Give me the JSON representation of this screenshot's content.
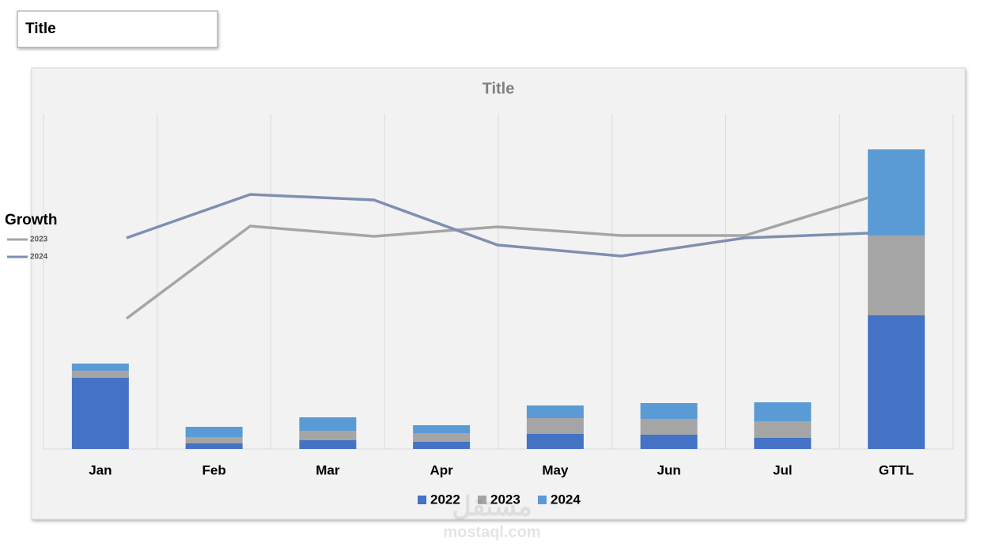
{
  "title_box": "Title",
  "watermark": [
    "مستقل",
    "mostaql.com"
  ],
  "chart_data": [
    {
      "type": "bar",
      "stacked": true,
      "title": "Title",
      "categories": [
        "Jan",
        "Feb",
        "Mar",
        "Apr",
        "May",
        "Jun",
        "Jul",
        "GTTL"
      ],
      "series": [
        {
          "name": "2022",
          "color": "#4472c4",
          "values": [
            90,
            7,
            11,
            9,
            19,
            18,
            14,
            169
          ]
        },
        {
          "name": "2023",
          "color": "#a5a5a5",
          "values": [
            9,
            8,
            12,
            11,
            20,
            20,
            21,
            101
          ]
        },
        {
          "name": "2024",
          "color": "#5b9bd5",
          "values": [
            9,
            13,
            17,
            10,
            16,
            20,
            24,
            109
          ]
        }
      ],
      "ylim": [
        0,
        424
      ],
      "grid": true,
      "legend": "bottom"
    },
    {
      "type": "line",
      "legend_title": "Growth",
      "series": [
        {
          "name": "2023",
          "color": "#a5a5a5",
          "values": [
            165,
            282,
            269,
            281,
            270,
            270,
            318
          ]
        },
        {
          "name": "2024",
          "color": "#7f8fb0",
          "values": [
            267,
            322,
            315,
            258,
            244,
            267,
            273
          ]
        }
      ],
      "ylim": [
        0,
        424
      ],
      "legend": "left"
    }
  ]
}
